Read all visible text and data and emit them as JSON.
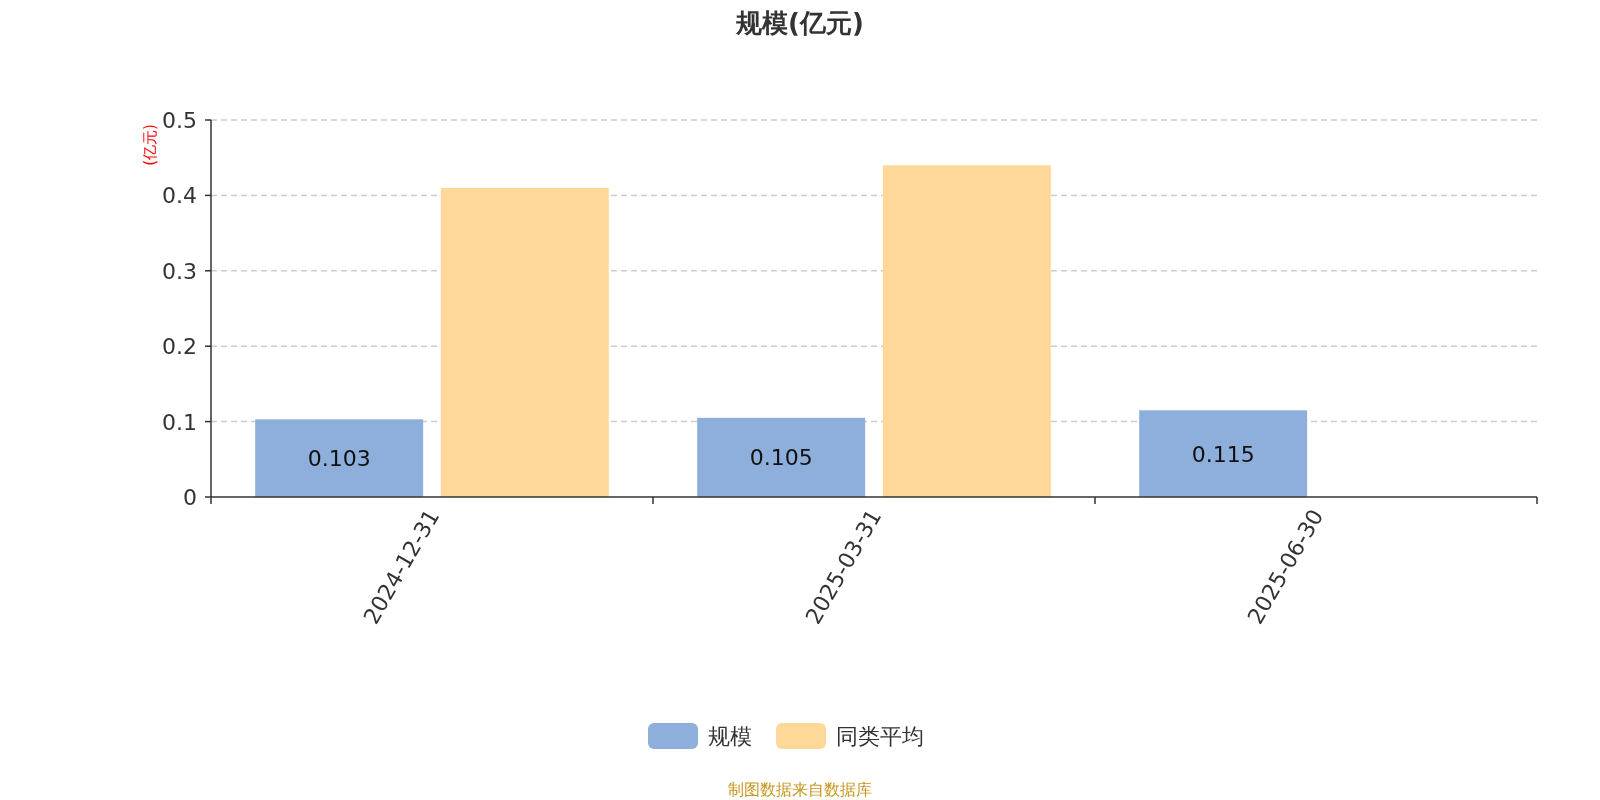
{
  "chart_data": {
    "type": "bar",
    "title": "规模(亿元)",
    "ylabel": "(亿元)",
    "categories": [
      "2024-12-31",
      "2025-03-31",
      "2025-06-30"
    ],
    "series": [
      {
        "name": "规模",
        "color": "#8eaedb",
        "values": [
          0.103,
          0.105,
          0.115
        ],
        "value_labels": [
          "0.103",
          "0.105",
          "0.115"
        ]
      },
      {
        "name": "同类平均",
        "color": "#fed899",
        "values": [
          0.41,
          0.44,
          null
        ]
      }
    ],
    "ylim": [
      0,
      0.5
    ],
    "yticks": [
      0,
      0.1,
      0.2,
      0.3,
      0.4,
      0.5
    ],
    "grid": "y",
    "legend": "bottom",
    "annotations": [
      "制图数据来自数据库"
    ]
  }
}
